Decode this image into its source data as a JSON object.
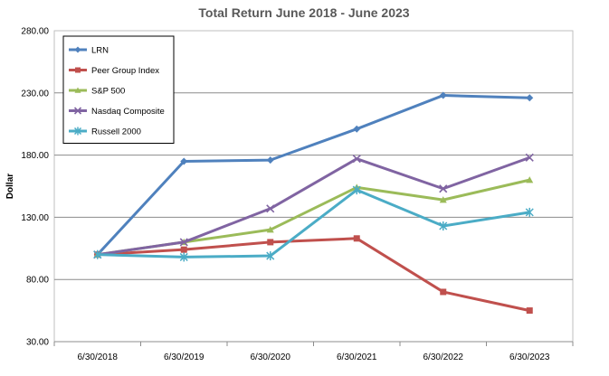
{
  "chart_data": {
    "type": "line",
    "title": "Total Return June 2018 - June 2023",
    "xlabel": "",
    "ylabel": "Dollar",
    "categories": [
      "6/30/2018",
      "6/30/2019",
      "6/30/2020",
      "6/30/2021",
      "6/30/2022",
      "6/30/2023"
    ],
    "ylim": [
      30,
      280
    ],
    "yticks": [
      "30.00",
      "80.00",
      "130.00",
      "180.00",
      "230.00",
      "280.00"
    ],
    "grid": true,
    "legend_position": "top-left",
    "series": [
      {
        "name": "LRN",
        "color": "#4F81BD",
        "marker": "diamond",
        "values": [
          100,
          175,
          176,
          201,
          228,
          226
        ]
      },
      {
        "name": "Peer Group Index",
        "color": "#C0504D",
        "marker": "square",
        "values": [
          100,
          104,
          110,
          113,
          70,
          55
        ]
      },
      {
        "name": "S&P 500",
        "color": "#9BBB59",
        "marker": "triangle",
        "values": [
          100,
          110,
          120,
          154,
          144,
          160
        ]
      },
      {
        "name": "Nasdaq Composite",
        "color": "#8064A2",
        "marker": "x",
        "values": [
          100,
          110,
          137,
          177,
          153,
          178
        ]
      },
      {
        "name": "Russell 2000",
        "color": "#4BACC6",
        "marker": "star",
        "values": [
          100,
          98,
          99,
          152,
          123,
          134
        ]
      }
    ]
  }
}
